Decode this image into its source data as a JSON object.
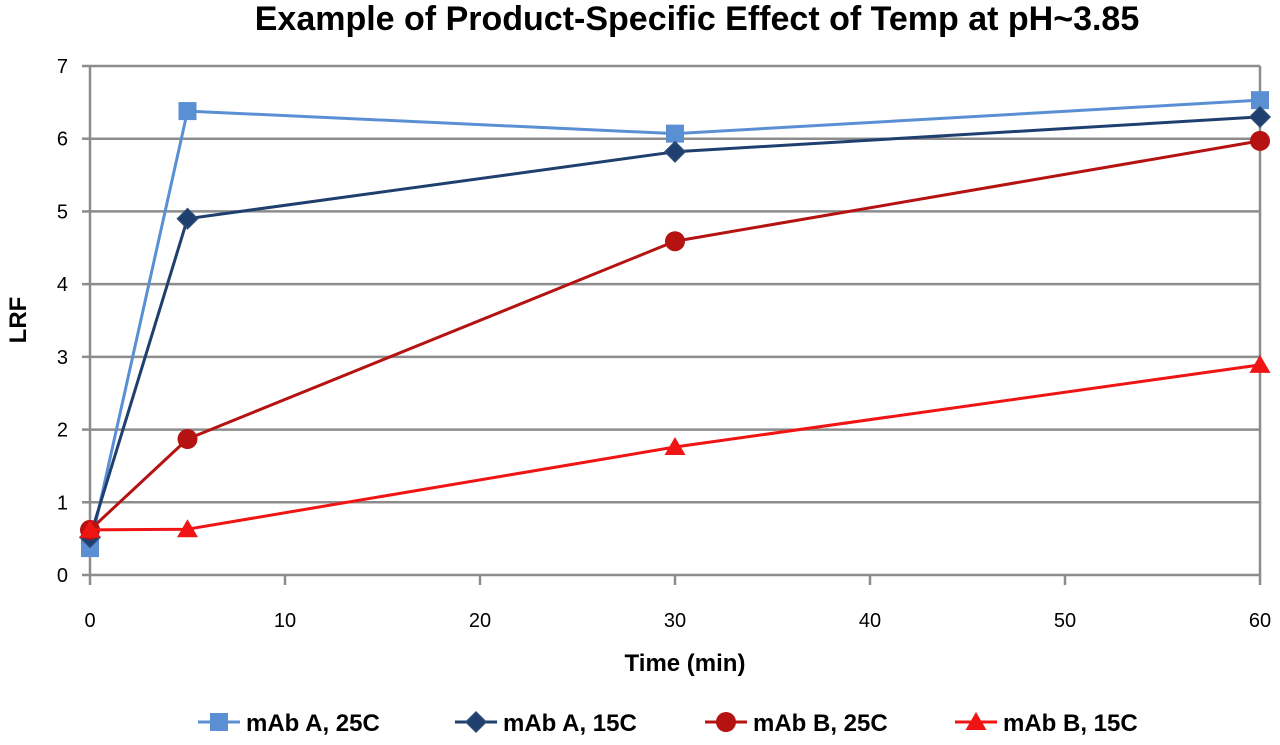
{
  "chart_data": {
    "type": "line",
    "title": "Example of Product-Specific Effect of Temp at pH~3.85",
    "xlabel": "Time (min)",
    "ylabel": "LRF",
    "xlim": [
      0,
      60
    ],
    "ylim": [
      0,
      7
    ],
    "xticks": [
      0,
      10,
      20,
      30,
      40,
      50,
      60
    ],
    "yticks": [
      0,
      1,
      2,
      3,
      4,
      5,
      6,
      7
    ],
    "grid": "horizontal",
    "legend_position": "bottom",
    "series": [
      {
        "name": "mAb A, 25C",
        "color": "#5b8fd4",
        "marker": "square",
        "x": [
          0,
          5,
          30,
          60
        ],
        "y": [
          0.37,
          6.38,
          6.07,
          6.53
        ]
      },
      {
        "name": "mAb A, 15C",
        "color": "#1f3f6e",
        "marker": "diamond",
        "x": [
          0,
          5,
          30,
          60
        ],
        "y": [
          0.52,
          4.9,
          5.82,
          6.3
        ]
      },
      {
        "name": "mAb B, 25C",
        "color": "#b51212",
        "marker": "circle",
        "x": [
          0,
          5,
          30,
          60
        ],
        "y": [
          0.62,
          1.87,
          4.59,
          5.97
        ]
      },
      {
        "name": "mAb B, 15C",
        "color": "#f01414",
        "marker": "triangle",
        "x": [
          0,
          5,
          30,
          60
        ],
        "y": [
          0.62,
          0.63,
          1.76,
          2.89
        ]
      }
    ]
  }
}
